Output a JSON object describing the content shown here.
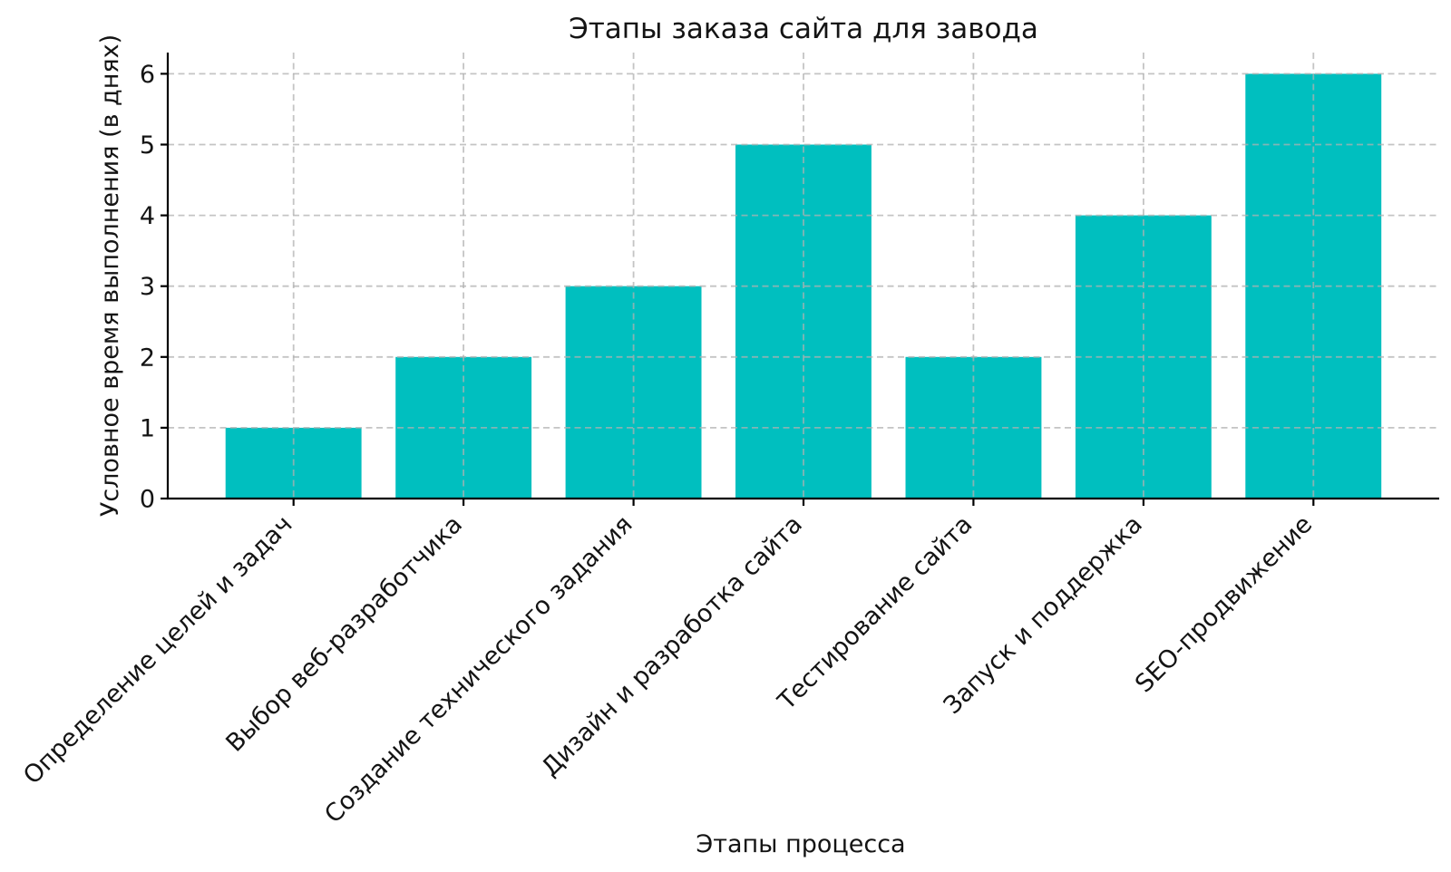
{
  "figure": {
    "background": "#ffffff"
  },
  "chart_data": {
    "type": "bar",
    "title": "Этапы заказа сайта для завода",
    "xlabel": "Этапы процесса",
    "ylabel": "Условное время выполнения (в днях)",
    "categories": [
      "Определение целей и задач",
      "Выбор веб-разработчика",
      "Создание технического задания",
      "Дизайн и разработка сайта",
      "Тестирование сайта",
      "Запуск и поддержка",
      "SEO-продвижение"
    ],
    "values": [
      1,
      2,
      3,
      5,
      2,
      4,
      6
    ],
    "yticks": [
      "0",
      "1",
      "2",
      "3",
      "4",
      "5",
      "6"
    ],
    "ylim": [
      0,
      6.3
    ],
    "x_tick_rotation_deg": 45,
    "bar_color": "#00bfbf",
    "grid": {
      "visible": true,
      "style": "dashed",
      "color": "#b0b0b0",
      "on_top": true
    },
    "axis_color": "#000000",
    "legend_position": "none"
  }
}
